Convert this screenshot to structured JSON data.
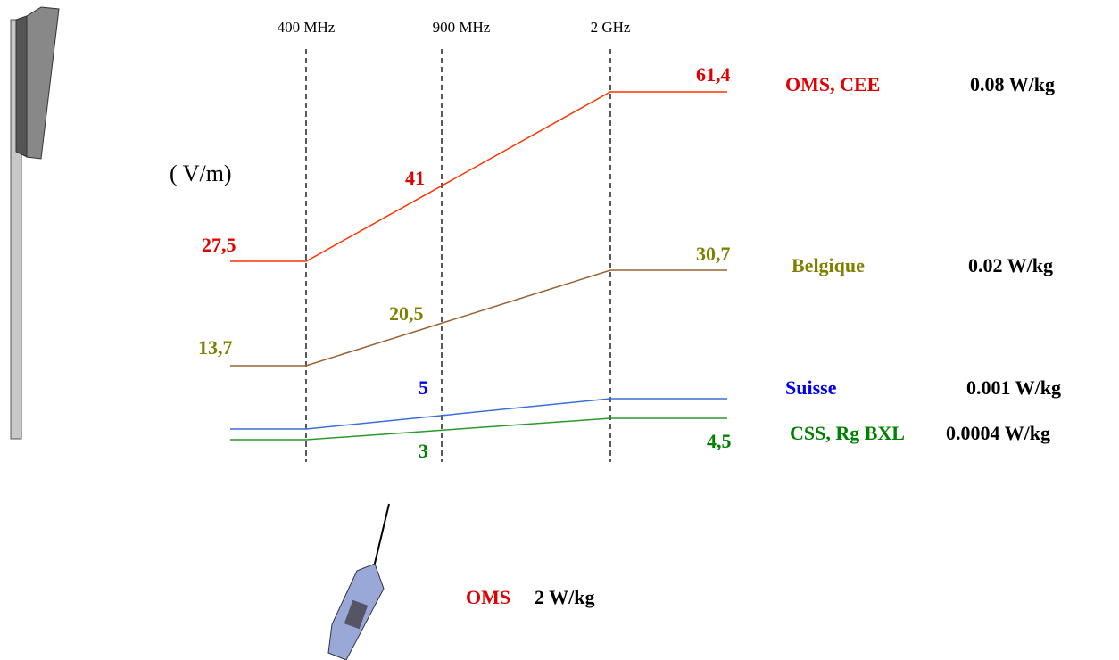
{
  "frequencies": [
    "400 MHz",
    "900 MHz",
    "2 GHz"
  ],
  "unit": "( V/m)",
  "series": [
    {
      "name": "OMS, CEE",
      "sar": "0.08 W/kg",
      "labels": [
        "27,5",
        "41",
        "61,4"
      ]
    },
    {
      "name": "Belgique",
      "sar": "0.02 W/kg",
      "labels": [
        "13,7",
        "20,5",
        "30,7"
      ]
    },
    {
      "name": "Suisse",
      "sar": "0.001 W/kg",
      "labels": [
        "5"
      ]
    },
    {
      "name": "CSS, Rg BXL",
      "sar": "0.0004 W/kg",
      "labels": [
        "3",
        "4,5"
      ]
    }
  ],
  "phone": {
    "name": "OMS",
    "sar": "2 W/kg"
  }
}
